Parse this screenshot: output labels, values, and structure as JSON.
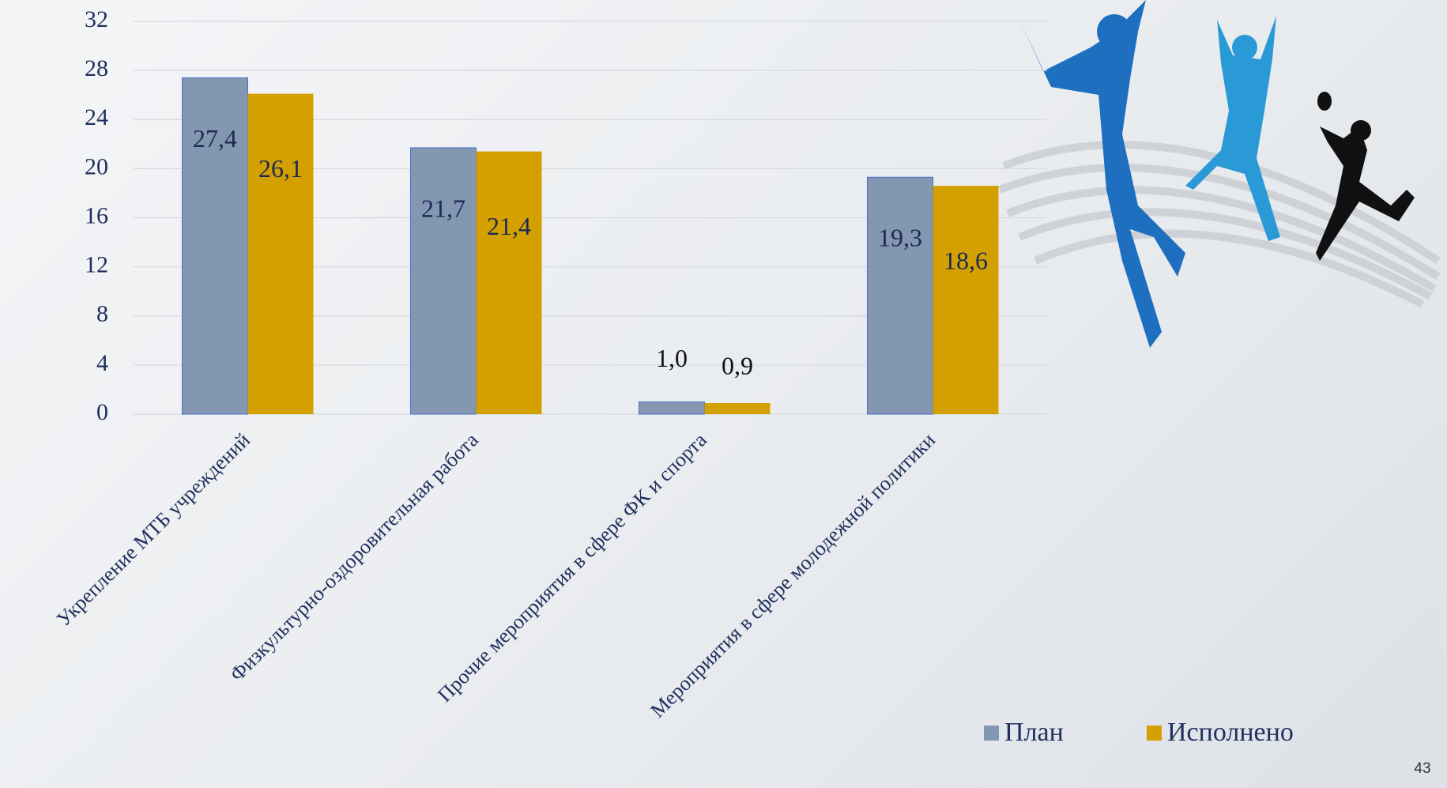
{
  "chart_data": {
    "type": "bar",
    "categories": [
      "Укрепление МТБ учреждений",
      "Физкультурно-оздоровительная работа",
      "Прочие мероприятия в сфере ФК и спорта",
      "Мероприятия в сфере молодежной политики"
    ],
    "series": [
      {
        "name": "План",
        "color": "#8497b0",
        "values": [
          27.4,
          21.7,
          1.0,
          19.3
        ],
        "value_labels": [
          "27,4",
          "21,7",
          "1,0",
          "19,3"
        ]
      },
      {
        "name": "Исполнено",
        "color": "#d4a000",
        "values": [
          26.1,
          21.4,
          0.9,
          18.6
        ],
        "value_labels": [
          "26,1",
          "21,4",
          "0,9",
          "18,6"
        ]
      }
    ],
    "ylim": [
      0,
      32
    ],
    "yticks": [
      0,
      4,
      8,
      12,
      16,
      20,
      24,
      28,
      32
    ],
    "grid": true,
    "legend": "bottom-right"
  },
  "page_number": "43"
}
